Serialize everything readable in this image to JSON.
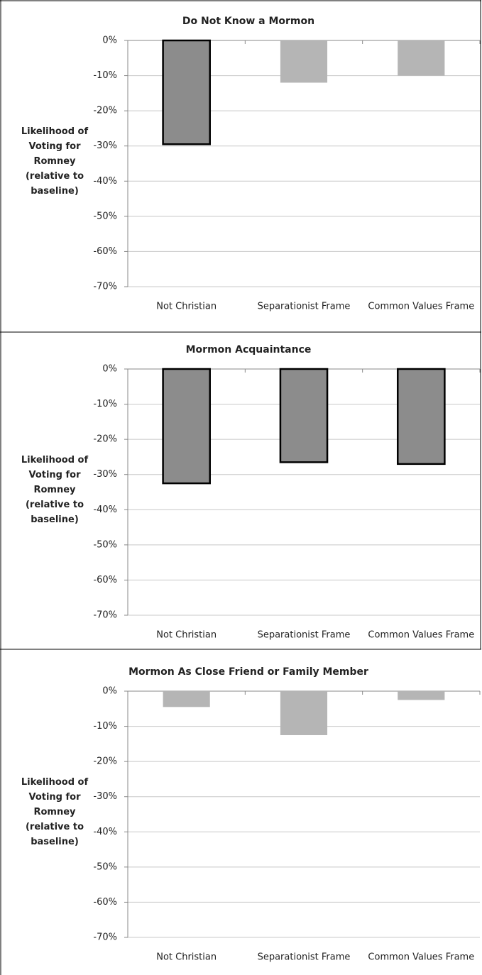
{
  "chart_data": [
    {
      "type": "bar",
      "title": "Do Not Know a Mormon",
      "ylabel": [
        "Likelihood of",
        "Voting for",
        "Romney",
        "(relative to",
        "baseline)"
      ],
      "categories": [
        "Not Christian",
        "Separationist Frame",
        "Common Values Frame"
      ],
      "values": [
        -29.5,
        -12,
        -10
      ],
      "colors": [
        "#8c8c8c",
        "#b5b5b5",
        "#b5b5b5"
      ],
      "edgecolors": [
        "#000000",
        "none",
        "none"
      ],
      "ylim": [
        -70,
        0
      ],
      "yticks": [
        {
          "value": 0,
          "label": "0%"
        },
        {
          "value": -10,
          "label": "-10%"
        },
        {
          "value": -20,
          "label": "-20%"
        },
        {
          "value": -30,
          "label": "-30%"
        },
        {
          "value": -40,
          "label": "-40%"
        },
        {
          "value": -50,
          "label": "-50%"
        },
        {
          "value": -60,
          "label": "-60%"
        },
        {
          "value": -70,
          "label": "-70%"
        }
      ],
      "grid": true
    },
    {
      "type": "bar",
      "title": "Mormon Acquaintance",
      "ylabel": [
        "Likelihood of",
        "Voting for",
        "Romney",
        "(relative to",
        "baseline)"
      ],
      "categories": [
        "Not Christian",
        "Separationist Frame",
        "Common Values Frame"
      ],
      "values": [
        -32.5,
        -26.5,
        -27
      ],
      "colors": [
        "#8c8c8c",
        "#8c8c8c",
        "#8c8c8c"
      ],
      "edgecolors": [
        "#000000",
        "#000000",
        "#000000"
      ],
      "ylim": [
        -70,
        0
      ],
      "yticks": [
        {
          "value": 0,
          "label": "0%"
        },
        {
          "value": -10,
          "label": "-10%"
        },
        {
          "value": -20,
          "label": "-20%"
        },
        {
          "value": -30,
          "label": "-30%"
        },
        {
          "value": -40,
          "label": "-40%"
        },
        {
          "value": -50,
          "label": "-50%"
        },
        {
          "value": -60,
          "label": "-60%"
        },
        {
          "value": -70,
          "label": "-70%"
        }
      ],
      "grid": true
    },
    {
      "type": "bar",
      "title": "Mormon As Close Friend or Family Member",
      "ylabel": [
        "Likelihood of",
        "Voting for",
        "Romney",
        "(relative to",
        "baseline)"
      ],
      "categories": [
        "Not Christian",
        "Separationist Frame",
        "Common Values Frame"
      ],
      "values": [
        -4.5,
        -12.5,
        -2.5
      ],
      "colors": [
        "#b5b5b5",
        "#b5b5b5",
        "#b5b5b5"
      ],
      "edgecolors": [
        "none",
        "none",
        "none"
      ],
      "ylim": [
        -70,
        0
      ],
      "yticks": [
        {
          "value": 0,
          "label": "0%"
        },
        {
          "value": -10,
          "label": "-10%"
        },
        {
          "value": -20,
          "label": "-20%"
        },
        {
          "value": -30,
          "label": "-30%"
        },
        {
          "value": -40,
          "label": "-40%"
        },
        {
          "value": -50,
          "label": "-50%"
        },
        {
          "value": -60,
          "label": "-60%"
        },
        {
          "value": -70,
          "label": "-70%"
        }
      ],
      "grid": true
    }
  ]
}
